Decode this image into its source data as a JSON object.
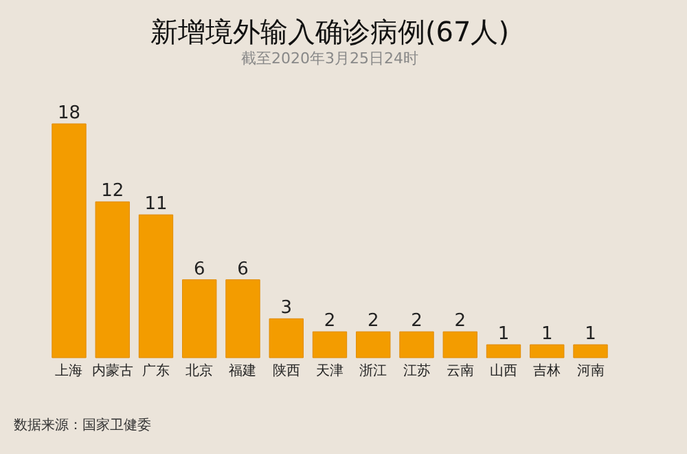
{
  "chart_data": {
    "type": "bar",
    "title": "新增境外输入确诊病例(67人)",
    "subtitle": "截至2020年3月25日24时",
    "categories": [
      "上海",
      "内蒙古",
      "广东",
      "北京",
      "福建",
      "陕西",
      "天津",
      "浙江",
      "江苏",
      "云南",
      "山西",
      "吉林",
      "河南"
    ],
    "values": [
      18,
      12,
      11,
      6,
      6,
      3,
      2,
      2,
      2,
      2,
      1,
      1,
      1
    ],
    "color": "#f39c00",
    "data_labels": true,
    "annotations": [
      "数据来源：国家卫健委"
    ]
  }
}
